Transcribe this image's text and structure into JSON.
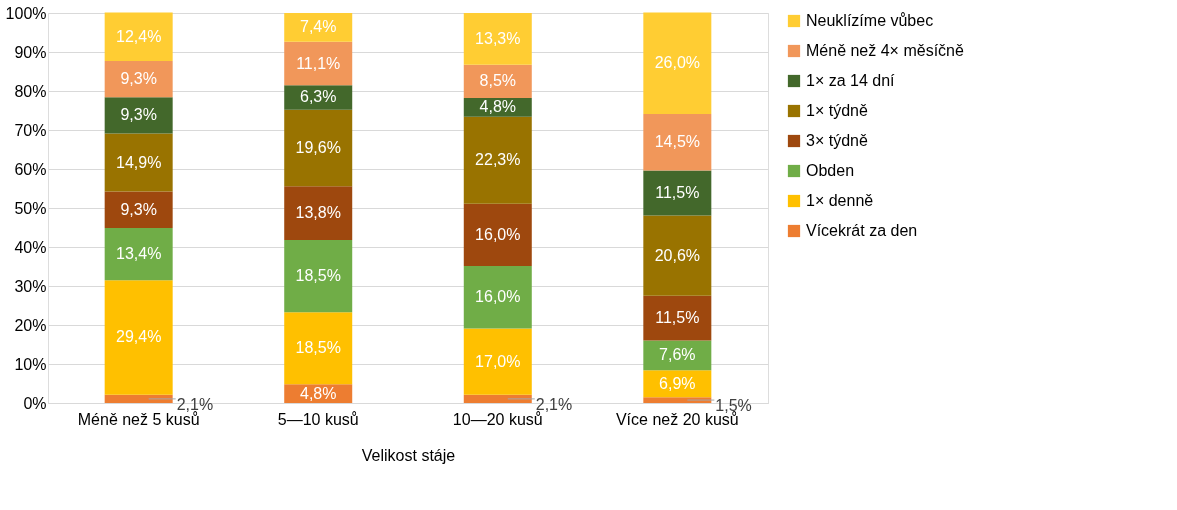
{
  "chart_data": {
    "type": "bar",
    "stacked": true,
    "xlabel": "Velikost stáje",
    "categories": [
      "Méně než 5 kusů",
      "5—10 kusů",
      "10—20 kusů",
      "Více než 20 kusů"
    ],
    "series": [
      {
        "name": "Vícekrát za den",
        "color": "#ed7d31",
        "values": [
          2.1,
          4.8,
          2.1,
          1.5
        ],
        "value_labels": [
          "2,1%",
          "4,8%",
          "2,1%",
          "1,5%"
        ]
      },
      {
        "name": "1× denně",
        "color": "#ffc000",
        "values": [
          29.4,
          18.5,
          17.0,
          6.9
        ],
        "value_labels": [
          "29,4%",
          "18,5%",
          "17,0%",
          "6,9%"
        ]
      },
      {
        "name": "Obden",
        "color": "#70ad47",
        "values": [
          13.4,
          18.5,
          16.0,
          7.6
        ],
        "value_labels": [
          "13,4%",
          "18,5%",
          "16,0%",
          "7,6%"
        ]
      },
      {
        "name": "3× týdně",
        "color": "#9e480e",
        "values": [
          9.3,
          13.8,
          16.0,
          11.5
        ],
        "value_labels": [
          "9,3%",
          "13,8%",
          "16,0%",
          "11,5%"
        ]
      },
      {
        "name": "1× týdně",
        "color": "#997300",
        "values": [
          14.9,
          19.6,
          22.3,
          20.6
        ],
        "value_labels": [
          "14,9%",
          "19,6%",
          "22,3%",
          "20,6%"
        ]
      },
      {
        "name": "1× za 14 dní",
        "color": "#43682b",
        "values": [
          9.3,
          6.3,
          4.8,
          11.5
        ],
        "value_labels": [
          "9,3%",
          "6,3%",
          "4,8%",
          "11,5%"
        ]
      },
      {
        "name": "Méně než 4× měsíčně",
        "color": "#f1975a",
        "values": [
          9.3,
          11.1,
          8.5,
          14.5
        ],
        "value_labels": [
          "9,3%",
          "11,1%",
          "8,5%",
          "14,5%"
        ]
      },
      {
        "name": "Neuklízíme vůbec",
        "color": "#ffcd33",
        "values": [
          12.4,
          7.4,
          13.3,
          26.0
        ],
        "value_labels": [
          "12,4%",
          "7,4%",
          "13,3%",
          "26,0%"
        ]
      }
    ],
    "ylim": [
      0,
      100
    ],
    "yticks": [
      {
        "value": 0,
        "label": "0%"
      },
      {
        "value": 10,
        "label": "10%"
      },
      {
        "value": 20,
        "label": "20%"
      },
      {
        "value": 30,
        "label": "30%"
      },
      {
        "value": 40,
        "label": "40%"
      },
      {
        "value": 50,
        "label": "50%"
      },
      {
        "value": 60,
        "label": "60%"
      },
      {
        "value": 70,
        "label": "70%"
      },
      {
        "value": 80,
        "label": "80%"
      },
      {
        "value": 90,
        "label": "90%"
      },
      {
        "value": 100,
        "label": "100%"
      }
    ],
    "grid": "y",
    "legend": "right"
  }
}
